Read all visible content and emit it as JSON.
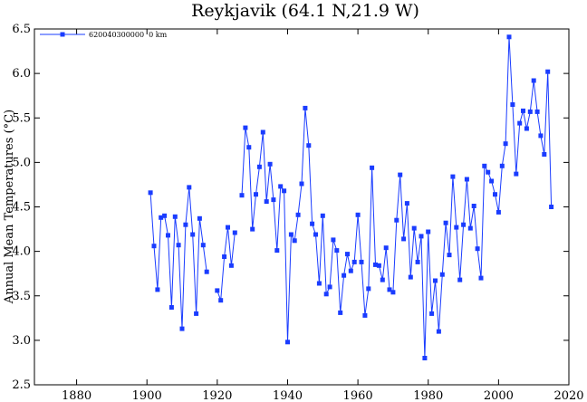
{
  "chart_data": {
    "type": "line",
    "title": "Reykjavik (64.1 N,21.9 W)",
    "xlabel": "",
    "ylabel": "Annual Mean Temperatures (°C)",
    "xlim": [
      1868,
      2020
    ],
    "ylim": [
      2.5,
      6.5
    ],
    "xticks": [
      1880,
      1900,
      1920,
      1940,
      1960,
      1980,
      2000,
      2020
    ],
    "yticks": [
      2.5,
      3.0,
      3.5,
      4.0,
      4.5,
      5.0,
      5.5,
      6.0,
      6.5
    ],
    "ytick_labels": [
      "2.5",
      "3.0",
      "3.5",
      "4.0",
      "4.5",
      "5.0",
      "5.5",
      "6.0",
      "6.5"
    ],
    "grid": false,
    "legend": "top-left",
    "color": "#1a3cff",
    "series": [
      {
        "name": "620040300000  0 km",
        "segments": [
          [
            [
              1901,
              4.66
            ],
            [
              1902,
              4.06
            ],
            [
              1903,
              3.57
            ],
            [
              1904,
              4.38
            ],
            [
              1905,
              4.4
            ],
            [
              1906,
              4.18
            ],
            [
              1907,
              3.37
            ],
            [
              1908,
              4.39
            ],
            [
              1909,
              4.07
            ],
            [
              1910,
              3.13
            ],
            [
              1911,
              4.3
            ],
            [
              1912,
              4.72
            ],
            [
              1913,
              4.19
            ],
            [
              1914,
              3.3
            ],
            [
              1915,
              4.37
            ],
            [
              1916,
              4.07
            ],
            [
              1917,
              3.77
            ]
          ],
          [
            [
              1920,
              3.56
            ],
            [
              1921,
              3.45
            ],
            [
              1922,
              3.94
            ],
            [
              1923,
              4.27
            ],
            [
              1924,
              3.84
            ],
            [
              1925,
              4.21
            ]
          ],
          [
            [
              1927,
              4.63
            ],
            [
              1928,
              5.39
            ],
            [
              1929,
              5.17
            ],
            [
              1930,
              4.25
            ],
            [
              1931,
              4.64
            ],
            [
              1932,
              4.95
            ],
            [
              1933,
              5.34
            ],
            [
              1934,
              4.56
            ],
            [
              1935,
              4.98
            ],
            [
              1936,
              4.58
            ],
            [
              1937,
              4.01
            ],
            [
              1938,
              4.73
            ],
            [
              1939,
              4.68
            ],
            [
              1940,
              2.98
            ],
            [
              1941,
              4.19
            ],
            [
              1942,
              4.12
            ],
            [
              1943,
              4.41
            ],
            [
              1944,
              4.76
            ],
            [
              1945,
              5.61
            ],
            [
              1946,
              5.19
            ],
            [
              1947,
              4.31
            ],
            [
              1948,
              4.19
            ],
            [
              1949,
              3.64
            ],
            [
              1950,
              4.4
            ],
            [
              1951,
              3.52
            ],
            [
              1952,
              3.6
            ],
            [
              1953,
              4.13
            ],
            [
              1954,
              4.01
            ],
            [
              1955,
              3.31
            ],
            [
              1956,
              3.73
            ],
            [
              1957,
              3.97
            ],
            [
              1958,
              3.78
            ],
            [
              1959,
              3.88
            ],
            [
              1960,
              4.41
            ],
            [
              1961,
              3.88
            ],
            [
              1962,
              3.28
            ],
            [
              1963,
              3.58
            ],
            [
              1964,
              4.94
            ],
            [
              1965,
              3.85
            ],
            [
              1966,
              3.84
            ],
            [
              1967,
              3.68
            ],
            [
              1968,
              4.04
            ],
            [
              1969,
              3.57
            ],
            [
              1970,
              3.54
            ],
            [
              1971,
              4.35
            ],
            [
              1972,
              4.86
            ],
            [
              1973,
              4.14
            ],
            [
              1974,
              4.54
            ],
            [
              1975,
              3.71
            ],
            [
              1976,
              4.26
            ],
            [
              1977,
              3.88
            ],
            [
              1978,
              4.17
            ],
            [
              1979,
              2.8
            ],
            [
              1980,
              4.22
            ],
            [
              1981,
              3.3
            ],
            [
              1982,
              3.67
            ],
            [
              1983,
              3.1
            ],
            [
              1984,
              3.74
            ],
            [
              1985,
              4.32
            ],
            [
              1986,
              3.96
            ],
            [
              1987,
              4.84
            ],
            [
              1988,
              4.27
            ],
            [
              1989,
              3.68
            ],
            [
              1990,
              4.3
            ],
            [
              1991,
              4.81
            ],
            [
              1992,
              4.26
            ],
            [
              1993,
              4.51
            ],
            [
              1994,
              4.03
            ],
            [
              1995,
              3.7
            ],
            [
              1996,
              4.96
            ],
            [
              1997,
              4.89
            ],
            [
              1998,
              4.79
            ],
            [
              1999,
              4.64
            ],
            [
              2000,
              4.44
            ],
            [
              2001,
              4.96
            ],
            [
              2002,
              5.21
            ],
            [
              2003,
              6.41
            ],
            [
              2004,
              5.65
            ],
            [
              2005,
              4.87
            ],
            [
              2006,
              5.44
            ],
            [
              2007,
              5.58
            ],
            [
              2008,
              5.38
            ],
            [
              2009,
              5.57
            ],
            [
              2010,
              5.92
            ],
            [
              2011,
              5.57
            ],
            [
              2012,
              5.3
            ],
            [
              2013,
              5.09
            ],
            [
              2014,
              6.02
            ],
            [
              2015,
              4.5
            ]
          ]
        ]
      }
    ]
  }
}
